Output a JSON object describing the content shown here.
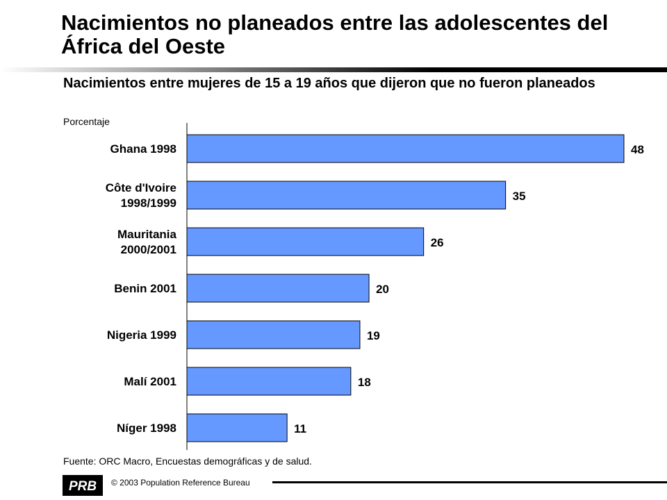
{
  "title": "Nacimientos no planeados entre las adolescentes del África del Oeste",
  "subtitle": "Nacimientos entre mujeres de 15 a 19 años que dijeron que no fueron planeados",
  "source": "Fuente: ORC Macro, Encuestas demográficas y de salud.",
  "copyright": "© 2003 Population Reference Bureau",
  "logo_text": "PRB",
  "colors": {
    "bar": "#6699FF",
    "bar_stroke": "#000000",
    "rule": "#000000"
  },
  "chart_data": {
    "type": "bar",
    "orientation": "horizontal",
    "ylabel": "Porcentaje",
    "categories": [
      [
        "Ghana 1998"
      ],
      [
        "Côte d'Ivoire",
        "1998/1999"
      ],
      [
        "Mauritania",
        "2000/2001"
      ],
      [
        "Benin 2001"
      ],
      [
        "Nigeria 1999"
      ],
      [
        "Malí 2001"
      ],
      [
        "Níger 1998"
      ]
    ],
    "values": [
      48,
      35,
      26,
      20,
      19,
      18,
      11
    ],
    "xlim": [
      0,
      48
    ],
    "grid": false,
    "data_labels": true
  }
}
